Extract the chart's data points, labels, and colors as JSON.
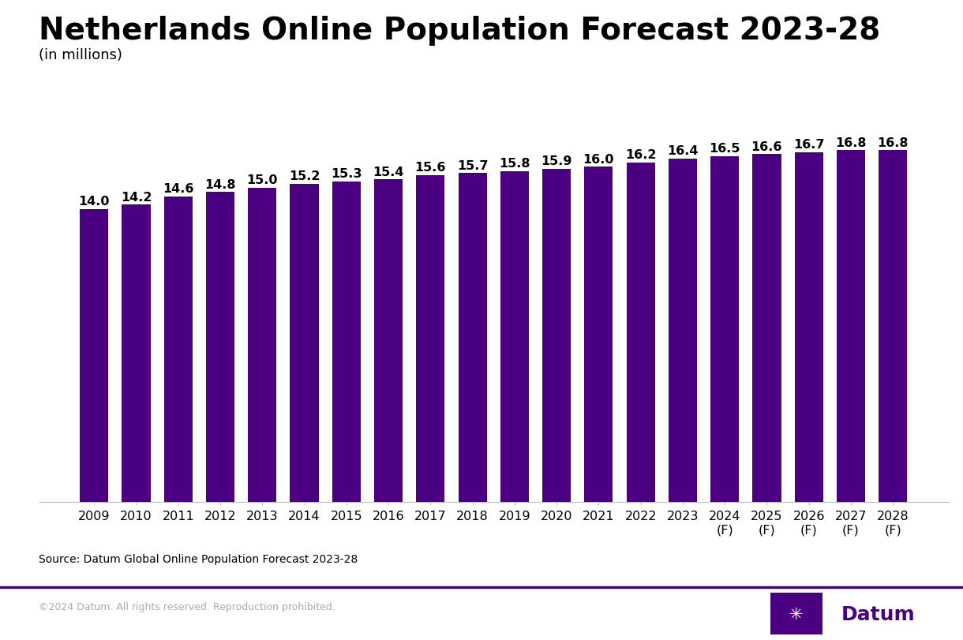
{
  "title": "Netherlands Online Population Forecast 2023-28",
  "subtitle": "(in millions)",
  "categories": [
    "2009",
    "2010",
    "2011",
    "2012",
    "2013",
    "2014",
    "2015",
    "2016",
    "2017",
    "2018",
    "2019",
    "2020",
    "2021",
    "2022",
    "2023",
    "2024\n(F)",
    "2025\n(F)",
    "2026\n(F)",
    "2027\n(F)",
    "2028\n(F)"
  ],
  "values": [
    14.0,
    14.2,
    14.6,
    14.8,
    15.0,
    15.2,
    15.3,
    15.4,
    15.6,
    15.7,
    15.8,
    15.9,
    16.0,
    16.2,
    16.4,
    16.5,
    16.6,
    16.7,
    16.8,
    16.8
  ],
  "bar_color": "#4B0082",
  "background_color": "#ffffff",
  "title_fontsize": 28,
  "subtitle_fontsize": 13,
  "label_fontsize": 11.5,
  "tick_fontsize": 11.5,
  "source_text": "Source: Datum Global Online Population Forecast 2023-28",
  "footer_left": "©2024 Datum. All rights reserved. Reproduction prohibited.",
  "footer_right": "Datum",
  "divider_color": "#4B0082",
  "footer_text_color": "#aaaaaa",
  "ylim": [
    0,
    18.8
  ]
}
